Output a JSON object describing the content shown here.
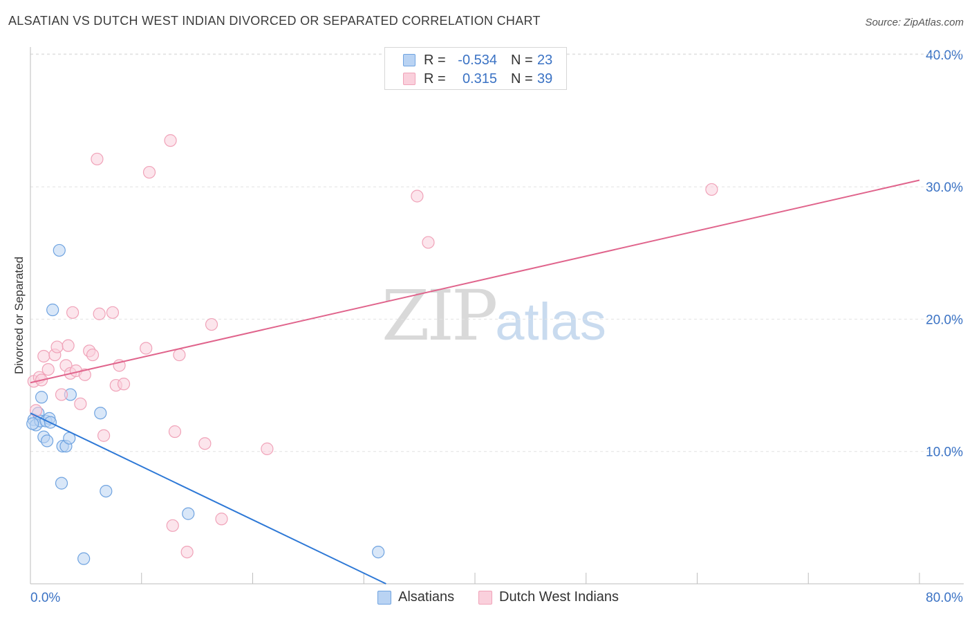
{
  "title": "ALSATIAN VS DUTCH WEST INDIAN DIVORCED OR SEPARATED CORRELATION CHART",
  "source": "Source: ZipAtlas.com",
  "watermark": {
    "zip": "ZIP",
    "atlas": "atlas"
  },
  "legend": {
    "rows": [
      {
        "r_label": "R =",
        "r_value": "-0.534",
        "n_label": "N =",
        "n_value": "23"
      },
      {
        "r_label": "R =",
        "r_value": "0.315",
        "n_label": "N =",
        "n_value": "39"
      }
    ]
  },
  "chart_data": {
    "type": "scatter",
    "title": "ALSATIAN VS DUTCH WEST INDIAN DIVORCED OR SEPARATED CORRELATION CHART",
    "xlabel": "",
    "ylabel": "Divorced or Separated",
    "xlim": [
      0,
      80
    ],
    "ylim": [
      0,
      42
    ],
    "x_tick_labels": [
      "0.0%",
      "80.0%"
    ],
    "y_ticks": [
      10,
      20,
      30,
      40
    ],
    "y_tick_labels": [
      "10.0%",
      "20.0%",
      "30.0%",
      "40.0%"
    ],
    "grid": true,
    "legend_position": "bottom",
    "series": [
      {
        "name": "Alsatians",
        "color": "#6fa3e0",
        "fill": "#b9d3f3",
        "line_color": "#2d78d6",
        "r": -0.534,
        "n": 23,
        "trend": {
          "x": [
            0,
            32
          ],
          "y": [
            12.9,
            0
          ]
        },
        "points": [
          [
            0.3,
            12.4
          ],
          [
            0.5,
            12.0
          ],
          [
            0.7,
            12.9
          ],
          [
            0.9,
            12.3
          ],
          [
            1.0,
            14.1
          ],
          [
            1.2,
            11.1
          ],
          [
            1.4,
            12.3
          ],
          [
            1.5,
            10.8
          ],
          [
            1.7,
            12.5
          ],
          [
            1.8,
            12.2
          ],
          [
            2.0,
            20.7
          ],
          [
            2.6,
            25.2
          ],
          [
            2.8,
            7.6
          ],
          [
            2.9,
            10.4
          ],
          [
            3.2,
            10.4
          ],
          [
            3.5,
            11.0
          ],
          [
            3.6,
            14.3
          ],
          [
            4.8,
            1.9
          ],
          [
            6.3,
            12.9
          ],
          [
            6.8,
            7.0
          ],
          [
            14.2,
            5.3
          ],
          [
            31.3,
            2.4
          ],
          [
            0.2,
            12.1
          ]
        ]
      },
      {
        "name": "Dutch West Indians",
        "color": "#f0a2b8",
        "fill": "#fad0dc",
        "line_color": "#e0648c",
        "r": 0.315,
        "n": 39,
        "trend": {
          "x": [
            0,
            80
          ],
          "y": [
            15.2,
            30.5
          ]
        },
        "points": [
          [
            0.3,
            15.3
          ],
          [
            0.5,
            13.1
          ],
          [
            0.8,
            15.6
          ],
          [
            1.0,
            15.4
          ],
          [
            1.2,
            17.2
          ],
          [
            1.6,
            16.2
          ],
          [
            2.2,
            17.3
          ],
          [
            2.4,
            17.9
          ],
          [
            2.8,
            14.3
          ],
          [
            3.2,
            16.5
          ],
          [
            3.4,
            18.0
          ],
          [
            3.6,
            15.9
          ],
          [
            3.8,
            20.5
          ],
          [
            4.1,
            16.1
          ],
          [
            4.5,
            13.6
          ],
          [
            4.9,
            15.8
          ],
          [
            5.3,
            17.6
          ],
          [
            5.6,
            17.3
          ],
          [
            6.0,
            32.1
          ],
          [
            6.2,
            20.4
          ],
          [
            6.6,
            11.2
          ],
          [
            7.4,
            20.5
          ],
          [
            7.7,
            15.0
          ],
          [
            8.0,
            16.5
          ],
          [
            8.4,
            15.1
          ],
          [
            10.4,
            17.8
          ],
          [
            10.7,
            31.1
          ],
          [
            12.6,
            33.5
          ],
          [
            12.8,
            4.4
          ],
          [
            13.0,
            11.5
          ],
          [
            13.4,
            17.3
          ],
          [
            14.1,
            2.4
          ],
          [
            15.7,
            10.6
          ],
          [
            16.3,
            19.6
          ],
          [
            17.2,
            4.9
          ],
          [
            21.3,
            10.2
          ],
          [
            34.8,
            29.3
          ],
          [
            35.8,
            25.8
          ],
          [
            61.3,
            29.8
          ]
        ]
      }
    ]
  }
}
